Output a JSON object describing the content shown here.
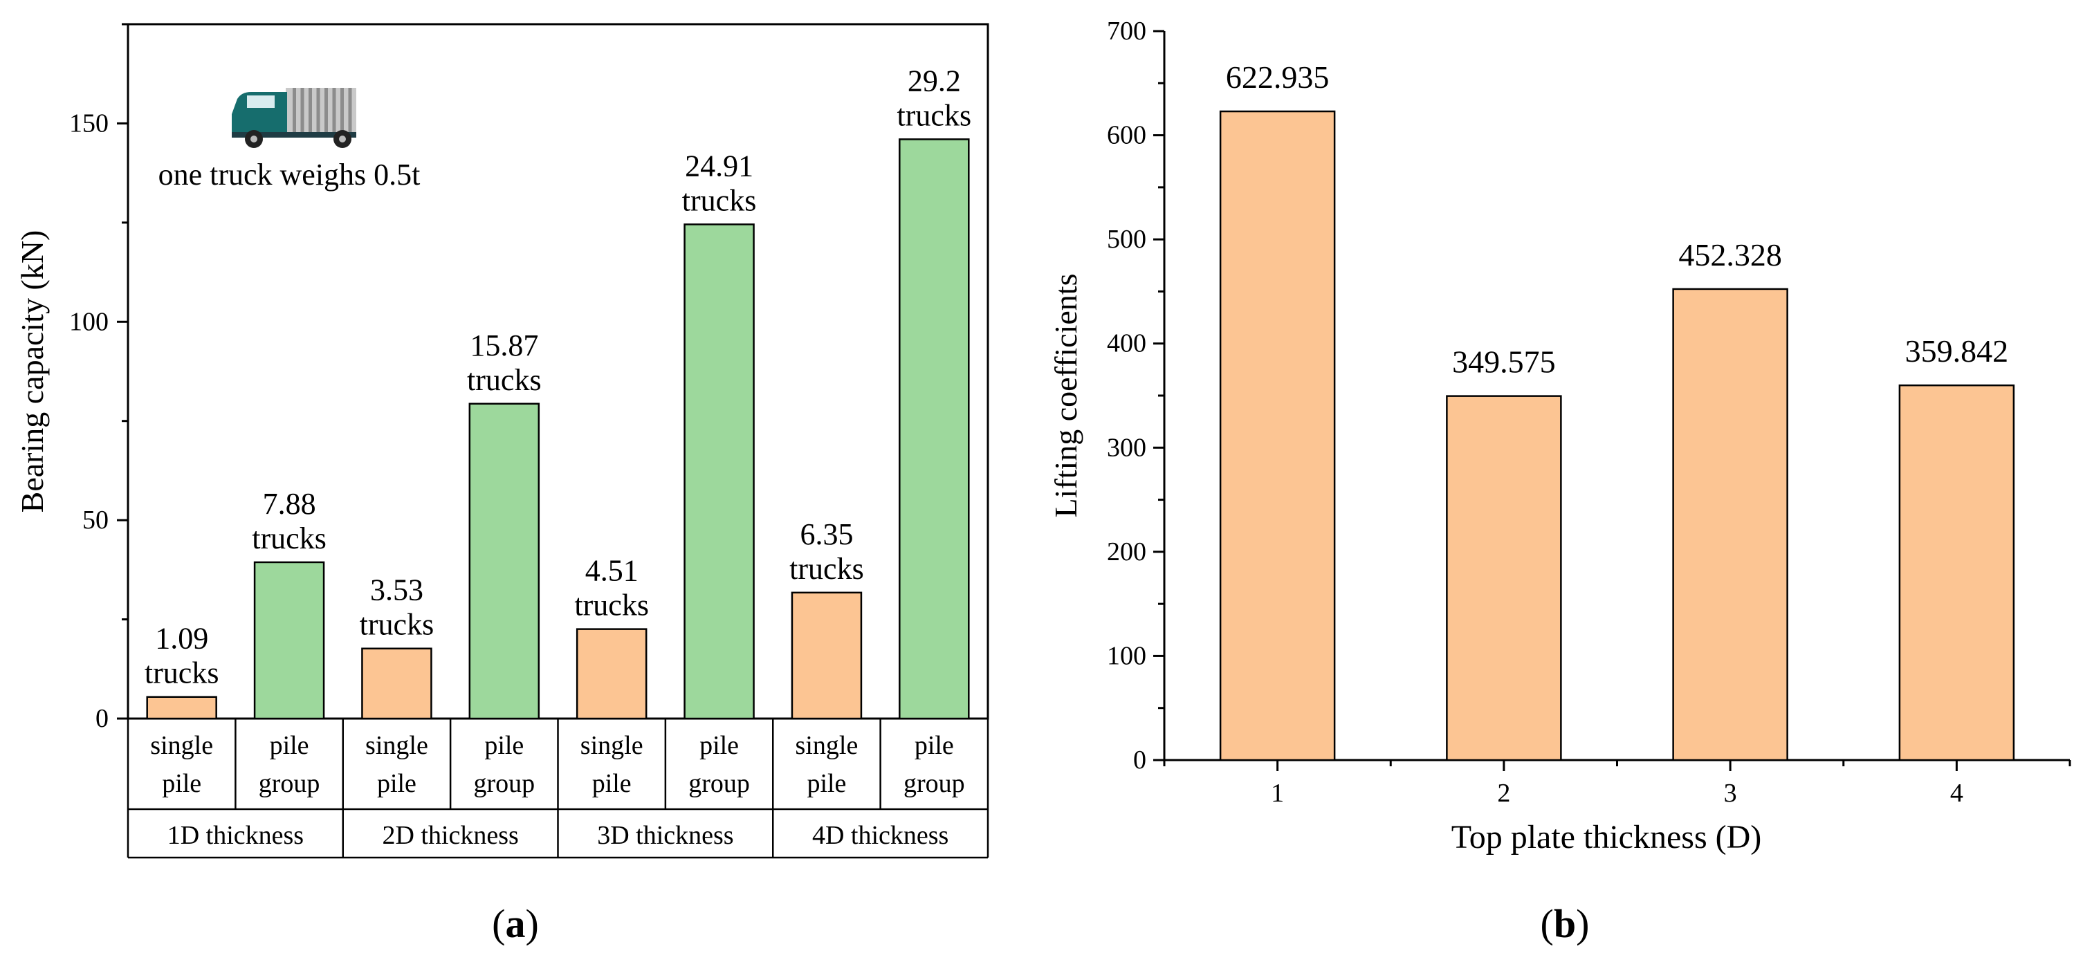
{
  "chart_data": [
    {
      "panel": "(a)",
      "type": "bar",
      "ylabel": "Bearing capacity (kN)",
      "ylim": [
        0,
        175
      ],
      "yticks": [
        0,
        50,
        100,
        150
      ],
      "grid": false,
      "colors": {
        "single pile": "#fcc593",
        "pile group": "#9dd89c"
      },
      "annotation": "one truck weighs 0.5t",
      "truck_icon": "truck-icon",
      "groups": [
        {
          "label": "1D thickness",
          "bars": [
            {
              "line1": "single",
              "line2": "pile",
              "value": 5.45,
              "num": "1.09",
              "unit": "trucks"
            },
            {
              "line1": "pile",
              "line2": "group",
              "value": 39.4,
              "num": "7.88",
              "unit": "trucks"
            }
          ]
        },
        {
          "label": "2D thickness",
          "bars": [
            {
              "line1": "single",
              "line2": "pile",
              "value": 17.65,
              "num": "3.53",
              "unit": "trucks"
            },
            {
              "line1": "pile",
              "line2": "group",
              "value": 79.35,
              "num": "15.87",
              "unit": "trucks"
            }
          ]
        },
        {
          "label": "3D thickness",
          "bars": [
            {
              "line1": "single",
              "line2": "pile",
              "value": 22.55,
              "num": "4.51",
              "unit": "trucks"
            },
            {
              "line1": "pile",
              "line2": "group",
              "value": 124.55,
              "num": "24.91",
              "unit": "trucks"
            }
          ]
        },
        {
          "label": "4D thickness",
          "bars": [
            {
              "line1": "single",
              "line2": "pile",
              "value": 31.75,
              "num": "6.35",
              "unit": "trucks"
            },
            {
              "line1": "pile",
              "line2": "group",
              "value": 146.0,
              "num": "29.2",
              "unit": "trucks"
            }
          ]
        }
      ]
    },
    {
      "panel": "(b)",
      "type": "bar",
      "xlabel": "Top plate thickness (D)",
      "ylabel": "Lifting coefficients",
      "ylim": [
        0,
        700
      ],
      "yticks": [
        0,
        100,
        200,
        300,
        400,
        500,
        600,
        700
      ],
      "grid": false,
      "color": "#fcc593",
      "categories": [
        "1",
        "2",
        "3",
        "4"
      ],
      "values": [
        622.935,
        349.575,
        452.328,
        359.842
      ],
      "value_labels": [
        "622.935",
        "349.575",
        "452.328",
        "359.842"
      ]
    }
  ]
}
